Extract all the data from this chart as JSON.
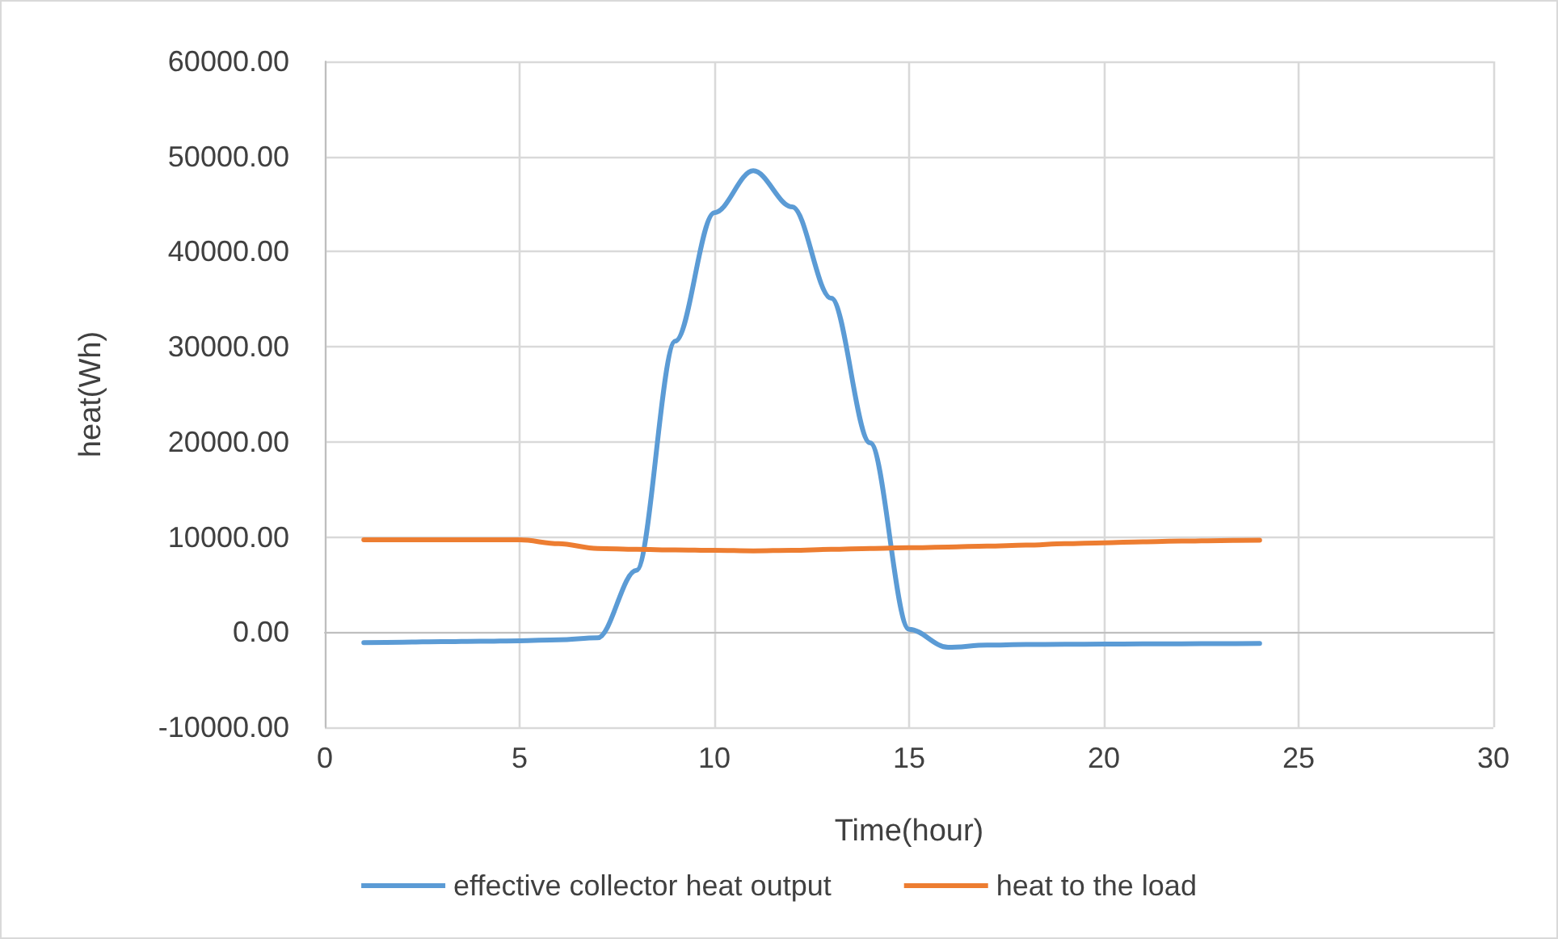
{
  "chart_data": {
    "type": "line",
    "xlabel": "Time(hour)",
    "ylabel": "heat(Wh)",
    "x": [
      1,
      2,
      3,
      4,
      5,
      6,
      7,
      8,
      9,
      10,
      11,
      12,
      13,
      14,
      15,
      16,
      17,
      18,
      19,
      20,
      21,
      22,
      23,
      24
    ],
    "series": [
      {
        "name": "effective collector heat output",
        "color": "#5b9bd5",
        "values": [
          -1100,
          -1050,
          -1000,
          -950,
          -900,
          -800,
          -600,
          6500,
          30600,
          44100,
          48500,
          44700,
          35100,
          19900,
          300,
          -1600,
          -1350,
          -1300,
          -1280,
          -1250,
          -1230,
          -1220,
          -1200,
          -1190
        ]
      },
      {
        "name": "heat to the load",
        "color": "#ed7d31",
        "values": [
          9700,
          9700,
          9700,
          9700,
          9700,
          9300,
          8800,
          8700,
          8650,
          8600,
          8550,
          8600,
          8700,
          8800,
          8870,
          8950,
          9050,
          9150,
          9300,
          9400,
          9500,
          9580,
          9630,
          9660
        ]
      }
    ],
    "xlim": [
      0,
      30
    ],
    "xticks": [
      0,
      5,
      10,
      15,
      20,
      25,
      30
    ],
    "ylim": [
      -10000,
      60000
    ],
    "yticks": [
      {
        "value": -10000,
        "label": "-10000.00"
      },
      {
        "value": 0,
        "label": "0.00"
      },
      {
        "value": 10000,
        "label": "10000.00"
      },
      {
        "value": 20000,
        "label": "20000.00"
      },
      {
        "value": 30000,
        "label": "30000.00"
      },
      {
        "value": 40000,
        "label": "40000.00"
      },
      {
        "value": 50000,
        "label": "50000.00"
      },
      {
        "value": 60000,
        "label": "60000.00"
      }
    ],
    "grid": true,
    "legend": "bottom",
    "marker": "none",
    "line_style": "solid"
  }
}
